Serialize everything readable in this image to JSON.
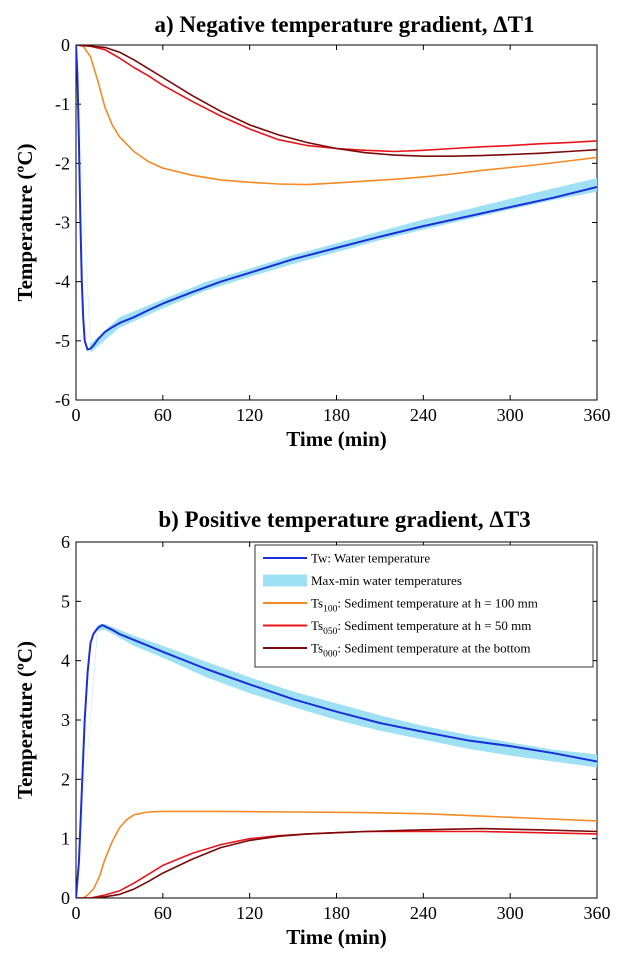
{
  "chart_data": [
    {
      "type": "line",
      "title": "a) Negative temperature gradient, ΔT1",
      "xlabel": "Time (min)",
      "ylabel": "Temperature (ºC)",
      "xlim": [
        0,
        360
      ],
      "ylim": [
        -6,
        0
      ],
      "xticks": [
        0,
        60,
        120,
        180,
        240,
        300,
        360
      ],
      "yticks": [
        -6,
        -5,
        -4,
        -3,
        -2,
        -1,
        0
      ],
      "series": [
        {
          "key": "tw",
          "x": [
            0,
            1,
            2,
            3,
            4,
            5,
            6,
            8,
            10,
            12,
            15,
            20,
            25,
            30,
            40,
            50,
            60,
            80,
            100,
            120,
            150,
            180,
            210,
            240,
            270,
            300,
            330,
            360
          ],
          "y": [
            0,
            -0.5,
            -1.6,
            -2.9,
            -4.0,
            -4.6,
            -5.0,
            -5.15,
            -5.13,
            -5.08,
            -4.98,
            -4.85,
            -4.77,
            -4.7,
            -4.6,
            -4.48,
            -4.37,
            -4.18,
            -4.0,
            -3.85,
            -3.62,
            -3.43,
            -3.24,
            -3.06,
            -2.9,
            -2.74,
            -2.58,
            -2.4
          ]
        },
        {
          "key": "band",
          "x": [
            0,
            10,
            30,
            60,
            90,
            120,
            150,
            180,
            210,
            240,
            270,
            300,
            330,
            360
          ],
          "upper": [
            0,
            -5.05,
            -4.6,
            -4.3,
            -4.0,
            -3.78,
            -3.55,
            -3.35,
            -3.15,
            -2.95,
            -2.78,
            -2.6,
            -2.42,
            -2.25
          ],
          "lower": [
            0,
            -5.2,
            -4.78,
            -4.45,
            -4.15,
            -3.92,
            -3.7,
            -3.5,
            -3.3,
            -3.12,
            -2.95,
            -2.78,
            -2.62,
            -2.48
          ]
        },
        {
          "key": "ts100",
          "x": [
            0,
            5,
            10,
            15,
            20,
            25,
            30,
            40,
            50,
            60,
            80,
            100,
            120,
            140,
            160,
            180,
            200,
            220,
            240,
            260,
            280,
            300,
            320,
            340,
            360
          ],
          "y": [
            0,
            -0.02,
            -0.2,
            -0.6,
            -1.05,
            -1.35,
            -1.55,
            -1.8,
            -1.97,
            -2.08,
            -2.2,
            -2.28,
            -2.32,
            -2.35,
            -2.36,
            -2.33,
            -2.3,
            -2.27,
            -2.23,
            -2.18,
            -2.12,
            -2.07,
            -2.02,
            -1.96,
            -1.9
          ]
        },
        {
          "key": "ts050",
          "x": [
            0,
            10,
            20,
            30,
            40,
            50,
            60,
            80,
            100,
            120,
            140,
            160,
            180,
            200,
            220,
            240,
            260,
            280,
            300,
            320,
            340,
            360
          ],
          "y": [
            0,
            -0.02,
            -0.08,
            -0.22,
            -0.38,
            -0.52,
            -0.68,
            -0.95,
            -1.2,
            -1.42,
            -1.6,
            -1.7,
            -1.75,
            -1.78,
            -1.8,
            -1.78,
            -1.75,
            -1.72,
            -1.7,
            -1.67,
            -1.65,
            -1.62
          ]
        },
        {
          "key": "ts000",
          "x": [
            0,
            10,
            20,
            30,
            40,
            50,
            60,
            80,
            100,
            120,
            140,
            160,
            180,
            200,
            220,
            240,
            260,
            280,
            300,
            320,
            340,
            360
          ],
          "y": [
            0,
            -0.02,
            -0.04,
            -0.12,
            -0.25,
            -0.4,
            -0.55,
            -0.85,
            -1.12,
            -1.35,
            -1.52,
            -1.65,
            -1.75,
            -1.82,
            -1.86,
            -1.88,
            -1.88,
            -1.87,
            -1.85,
            -1.83,
            -1.8,
            -1.77
          ]
        }
      ]
    },
    {
      "type": "line",
      "title": "b) Positive temperature gradient, ΔT3",
      "xlabel": "Time (min)",
      "ylabel": "Temperature (ºC)",
      "xlim": [
        0,
        360
      ],
      "ylim": [
        0,
        6
      ],
      "xticks": [
        0,
        60,
        120,
        180,
        240,
        300,
        360
      ],
      "yticks": [
        0,
        1,
        2,
        3,
        4,
        5,
        6
      ],
      "series": [
        {
          "key": "tw",
          "x": [
            0,
            2,
            4,
            6,
            8,
            10,
            12,
            15,
            18,
            20,
            25,
            30,
            40,
            50,
            60,
            90,
            120,
            150,
            180,
            210,
            240,
            270,
            300,
            330,
            360
          ],
          "y": [
            0,
            0.6,
            1.8,
            3.0,
            3.8,
            4.3,
            4.45,
            4.55,
            4.6,
            4.58,
            4.52,
            4.45,
            4.35,
            4.25,
            4.15,
            3.86,
            3.6,
            3.35,
            3.14,
            2.95,
            2.8,
            2.66,
            2.56,
            2.44,
            2.3
          ]
        },
        {
          "key": "band",
          "x": [
            0,
            15,
            20,
            40,
            60,
            90,
            120,
            150,
            180,
            210,
            240,
            270,
            300,
            330,
            360
          ],
          "upper": [
            0,
            4.6,
            4.62,
            4.42,
            4.25,
            3.98,
            3.72,
            3.48,
            3.28,
            3.08,
            2.9,
            2.75,
            2.62,
            2.5,
            2.42
          ],
          "lower": [
            0,
            4.5,
            4.52,
            4.25,
            4.05,
            3.72,
            3.45,
            3.22,
            3.0,
            2.82,
            2.67,
            2.52,
            2.4,
            2.3,
            2.2
          ]
        },
        {
          "key": "ts100",
          "x": [
            0,
            5,
            8,
            12,
            16,
            20,
            25,
            30,
            35,
            40,
            45,
            50,
            60,
            80,
            100,
            150,
            200,
            240,
            280,
            320,
            360
          ],
          "y": [
            0,
            0,
            0.05,
            0.15,
            0.35,
            0.65,
            0.95,
            1.18,
            1.32,
            1.4,
            1.43,
            1.45,
            1.46,
            1.46,
            1.46,
            1.45,
            1.44,
            1.42,
            1.38,
            1.34,
            1.3
          ]
        },
        {
          "key": "ts050",
          "x": [
            0,
            10,
            20,
            30,
            40,
            50,
            60,
            80,
            100,
            120,
            140,
            160,
            180,
            200,
            240,
            280,
            320,
            360
          ],
          "y": [
            0,
            0,
            0.05,
            0.12,
            0.25,
            0.4,
            0.55,
            0.75,
            0.9,
            1.0,
            1.05,
            1.08,
            1.1,
            1.12,
            1.12,
            1.12,
            1.1,
            1.08
          ]
        },
        {
          "key": "ts000",
          "x": [
            0,
            10,
            20,
            30,
            40,
            50,
            60,
            80,
            100,
            120,
            140,
            160,
            180,
            200,
            240,
            280,
            320,
            360
          ],
          "y": [
            0,
            0,
            0.02,
            0.06,
            0.15,
            0.28,
            0.42,
            0.65,
            0.85,
            0.97,
            1.04,
            1.08,
            1.1,
            1.12,
            1.15,
            1.17,
            1.15,
            1.12
          ]
        }
      ]
    }
  ],
  "legend": {
    "placement": "top-right of panel b",
    "entries": [
      {
        "key": "tw",
        "base": "Tw",
        "sub": "",
        "text": ": Water temperature"
      },
      {
        "key": "band",
        "base": "Max-min water temperatures",
        "sub": "",
        "text": ""
      },
      {
        "key": "ts100",
        "base": "Ts",
        "sub": "100",
        "text": ": Sediment temperature at h = 100 mm"
      },
      {
        "key": "ts050",
        "base": "Ts",
        "sub": "050",
        "text": ": Sediment temperature at h = 50 mm"
      },
      {
        "key": "ts000",
        "base": "Ts",
        "sub": "000",
        "text": ": Sediment temperature at the bottom"
      }
    ]
  },
  "colors": {
    "tw": "#1a2fd6",
    "band": "#9fe1f4",
    "ts100": "#f28a26",
    "ts050": "#e8141c",
    "ts000": "#7a0a0a"
  }
}
